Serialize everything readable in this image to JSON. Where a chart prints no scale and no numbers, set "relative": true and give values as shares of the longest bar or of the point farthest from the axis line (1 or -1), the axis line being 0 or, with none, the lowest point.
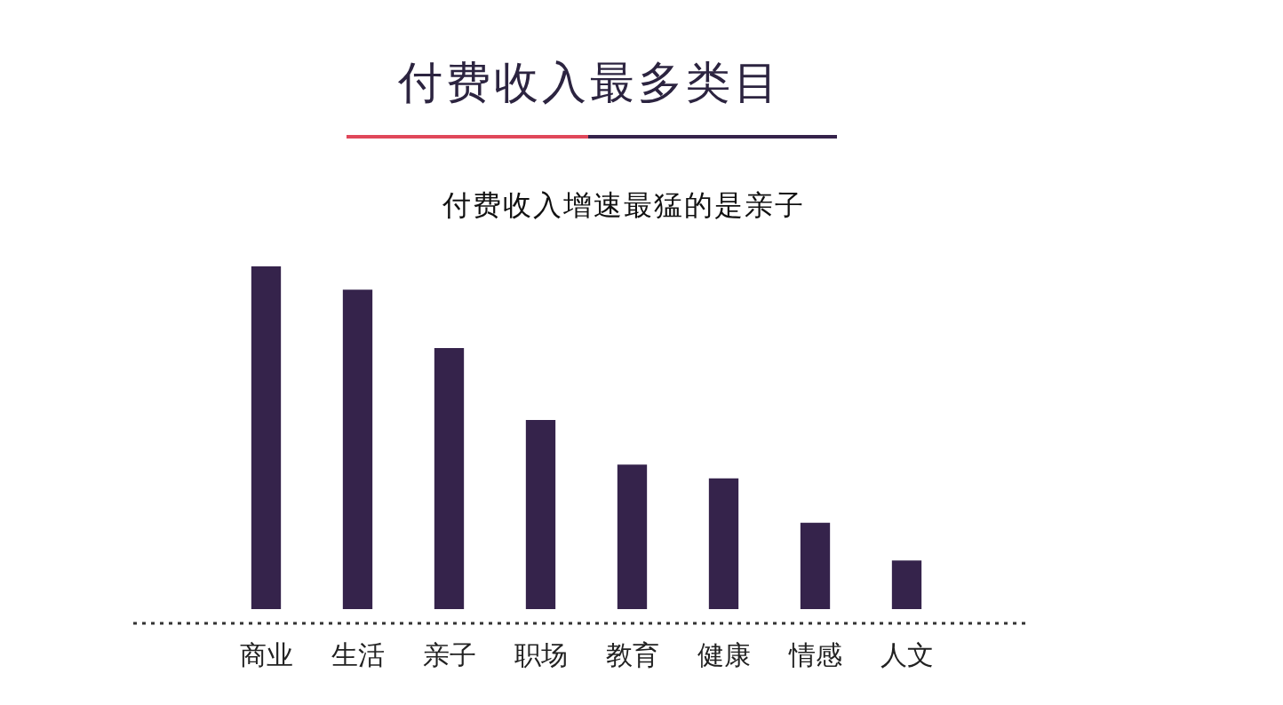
{
  "chart_data": {
    "type": "bar",
    "title": "付费收入最多类目",
    "subtitle": "付费收入增速最猛的是亲子",
    "categories": [
      "商业",
      "生活",
      "亲子",
      "职场",
      "教育",
      "健康",
      "情感",
      "人文"
    ],
    "values": [
      1,
      0.93,
      0.76,
      0.55,
      0.42,
      0.38,
      0.25,
      0.14
    ],
    "color": "#35234b",
    "relative": true,
    "grid": false,
    "legend": false
  }
}
